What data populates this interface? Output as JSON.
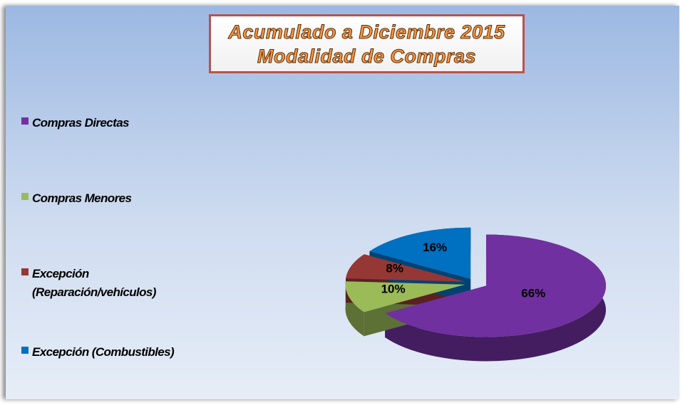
{
  "chart_data": {
    "type": "pie",
    "title": [
      "Acumulado a Diciembre 2015",
      "Modalidad de Compras"
    ],
    "categories": [
      "Compras Directas",
      "Compras Menores",
      "Excepción (Reparación/vehículos)",
      "Excepción (Combustibles)"
    ],
    "values": [
      66,
      10,
      8,
      16
    ],
    "value_labels": [
      "66%",
      "10%",
      "8%",
      "16%"
    ],
    "colors": [
      "#7030a0",
      "#9bbb59",
      "#953735",
      "#0070c0"
    ],
    "legend": "left"
  }
}
